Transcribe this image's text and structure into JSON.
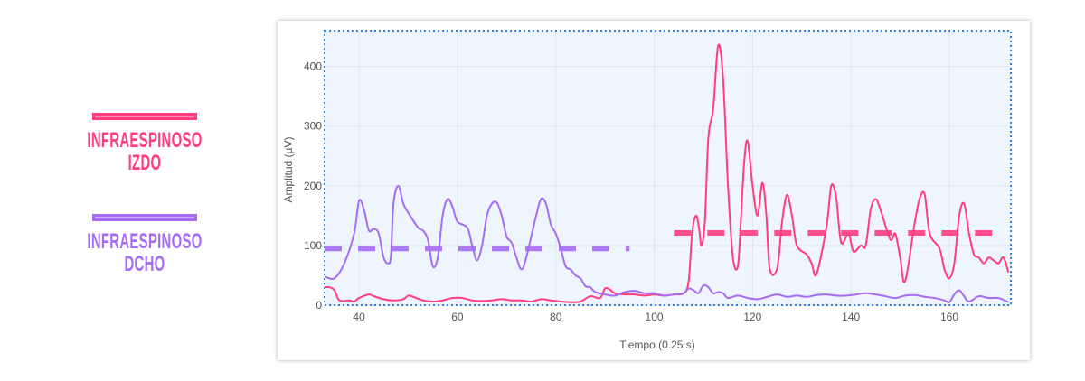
{
  "legend": [
    {
      "label": "INFRAESPINOSO IZDO",
      "color": "#ff3d7f",
      "fill": "#ff8fb3"
    },
    {
      "label": "INFRAESPINOSO DCHO",
      "color": "#a66cf5",
      "fill": "#caa8fb"
    }
  ],
  "chart_data": {
    "type": "line",
    "title": "",
    "xlabel": "Tiempo (0.25 s)",
    "ylabel": "Amplitud (µV)",
    "xlim": [
      33,
      172.5
    ],
    "ylim": [
      0,
      460
    ],
    "xticks": [
      40,
      60,
      80,
      100,
      120,
      140,
      160
    ],
    "yticks": [
      0,
      100,
      200,
      300,
      400
    ],
    "grid": true,
    "legend": "left, outside",
    "plot_background": "#eef5fc",
    "series": [
      {
        "name": "INFRAESPINOSO IZDO",
        "color": "#ff3d7f",
        "points": [
          [
            33,
            30
          ],
          [
            34,
            30
          ],
          [
            35,
            25
          ],
          [
            36,
            8
          ],
          [
            38,
            8
          ],
          [
            39,
            6
          ],
          [
            40,
            12
          ],
          [
            42,
            18
          ],
          [
            43,
            15
          ],
          [
            45,
            10
          ],
          [
            47,
            8
          ],
          [
            49,
            10
          ],
          [
            50,
            16
          ],
          [
            51,
            14
          ],
          [
            53,
            8
          ],
          [
            55,
            6
          ],
          [
            57,
            8
          ],
          [
            59,
            12
          ],
          [
            61,
            12
          ],
          [
            63,
            8
          ],
          [
            65,
            7
          ],
          [
            67,
            8
          ],
          [
            69,
            10
          ],
          [
            71,
            8
          ],
          [
            73,
            8
          ],
          [
            75,
            6
          ],
          [
            77,
            10
          ],
          [
            79,
            8
          ],
          [
            81,
            6
          ],
          [
            83,
            5
          ],
          [
            85,
            6
          ],
          [
            87,
            15
          ],
          [
            89,
            12
          ],
          [
            90,
            28
          ],
          [
            91,
            26
          ],
          [
            92,
            20
          ],
          [
            94,
            18
          ],
          [
            96,
            18
          ],
          [
            98,
            16
          ],
          [
            100,
            18
          ],
          [
            102,
            16
          ],
          [
            104,
            18
          ],
          [
            106,
            20
          ],
          [
            107,
            40
          ],
          [
            107.7,
            120
          ],
          [
            108.5,
            150
          ],
          [
            109.1,
            130
          ],
          [
            109.6,
            100
          ],
          [
            110.3,
            140
          ],
          [
            111,
            280
          ],
          [
            112,
            330
          ],
          [
            113,
            435
          ],
          [
            114,
            380
          ],
          [
            115,
            200
          ],
          [
            116,
            80
          ],
          [
            117,
            65
          ],
          [
            117.6,
            140
          ],
          [
            118.3,
            240
          ],
          [
            119,
            275
          ],
          [
            120,
            200
          ],
          [
            121,
            150
          ],
          [
            122,
            205
          ],
          [
            122.8,
            150
          ],
          [
            123.5,
            60
          ],
          [
            125,
            62
          ],
          [
            126,
            140
          ],
          [
            127,
            185
          ],
          [
            128,
            150
          ],
          [
            129,
            100
          ],
          [
            131,
            85
          ],
          [
            132,
            70
          ],
          [
            133,
            52
          ],
          [
            135,
            130
          ],
          [
            136,
            200
          ],
          [
            137,
            180
          ],
          [
            138,
            105
          ],
          [
            139.5,
            120
          ],
          [
            140.5,
            90
          ],
          [
            142,
            100
          ],
          [
            143,
            100
          ],
          [
            144,
            160
          ],
          [
            145,
            178
          ],
          [
            146,
            160
          ],
          [
            148,
            110
          ],
          [
            149,
            120
          ],
          [
            150,
            80
          ],
          [
            151,
            40
          ],
          [
            153,
            140
          ],
          [
            154,
            180
          ],
          [
            155,
            185
          ],
          [
            156,
            120
          ],
          [
            158,
            95
          ],
          [
            159,
            60
          ],
          [
            160,
            45
          ],
          [
            161,
            70
          ],
          [
            162,
            150
          ],
          [
            163,
            170
          ],
          [
            164,
            120
          ],
          [
            165,
            85
          ],
          [
            166,
            80
          ],
          [
            167,
            70
          ],
          [
            168,
            80
          ],
          [
            169,
            75
          ],
          [
            170,
            70
          ],
          [
            171,
            80
          ],
          [
            172,
            55
          ]
        ],
        "mean": 121,
        "mean_range": [
          104,
          172
        ]
      },
      {
        "name": "INFRAESPINOSO DCHO",
        "color": "#a66cf5",
        "points": [
          [
            33,
            48
          ],
          [
            35,
            45
          ],
          [
            37,
            70
          ],
          [
            39,
            120
          ],
          [
            40,
            175
          ],
          [
            41,
            160
          ],
          [
            42,
            125
          ],
          [
            43,
            128
          ],
          [
            44,
            120
          ],
          [
            45,
            80
          ],
          [
            46,
            70
          ],
          [
            46.5,
            85
          ],
          [
            47,
            170
          ],
          [
            48,
            200
          ],
          [
            49,
            170
          ],
          [
            50,
            155
          ],
          [
            52,
            130
          ],
          [
            53,
            125
          ],
          [
            54,
            110
          ],
          [
            55,
            65
          ],
          [
            56,
            80
          ],
          [
            57,
            150
          ],
          [
            58,
            178
          ],
          [
            59,
            165
          ],
          [
            60,
            140
          ],
          [
            62,
            130
          ],
          [
            63,
            100
          ],
          [
            64,
            75
          ],
          [
            65,
            100
          ],
          [
            66,
            150
          ],
          [
            67,
            170
          ],
          [
            68,
            172
          ],
          [
            69,
            150
          ],
          [
            70,
            115
          ],
          [
            71,
            105
          ],
          [
            72,
            80
          ],
          [
            73,
            60
          ],
          [
            74,
            80
          ],
          [
            76,
            150
          ],
          [
            77,
            178
          ],
          [
            78,
            170
          ],
          [
            79,
            135
          ],
          [
            80,
            120
          ],
          [
            81,
            95
          ],
          [
            82,
            65
          ],
          [
            83,
            60
          ],
          [
            84,
            50
          ],
          [
            85,
            45
          ],
          [
            86,
            32
          ],
          [
            87,
            30
          ],
          [
            88,
            22
          ],
          [
            90,
            18
          ],
          [
            92,
            16
          ],
          [
            94,
            22
          ],
          [
            96,
            24
          ],
          [
            98,
            20
          ],
          [
            100,
            20
          ],
          [
            102,
            16
          ],
          [
            104,
            18
          ],
          [
            106,
            20
          ],
          [
            107,
            28
          ],
          [
            108,
            25
          ],
          [
            109,
            20
          ],
          [
            110,
            33
          ],
          [
            111,
            30
          ],
          [
            112,
            20
          ],
          [
            113,
            22
          ],
          [
            114,
            20
          ],
          [
            115,
            12
          ],
          [
            117,
            16
          ],
          [
            119,
            12
          ],
          [
            121,
            10
          ],
          [
            123,
            14
          ],
          [
            125,
            18
          ],
          [
            127,
            14
          ],
          [
            129,
            16
          ],
          [
            131,
            14
          ],
          [
            133,
            17
          ],
          [
            135,
            18
          ],
          [
            137,
            16
          ],
          [
            139,
            16
          ],
          [
            141,
            18
          ],
          [
            143,
            20
          ],
          [
            145,
            18
          ],
          [
            147,
            15
          ],
          [
            149,
            12
          ],
          [
            151,
            16
          ],
          [
            153,
            17
          ],
          [
            155,
            14
          ],
          [
            157,
            12
          ],
          [
            159,
            8
          ],
          [
            160,
            5
          ],
          [
            161,
            18
          ],
          [
            162,
            25
          ],
          [
            163,
            15
          ],
          [
            164,
            6
          ],
          [
            166,
            15
          ],
          [
            168,
            12
          ],
          [
            170,
            12
          ],
          [
            172,
            5
          ]
        ],
        "mean": 95,
        "mean_range": [
          33,
          95
        ]
      }
    ]
  }
}
